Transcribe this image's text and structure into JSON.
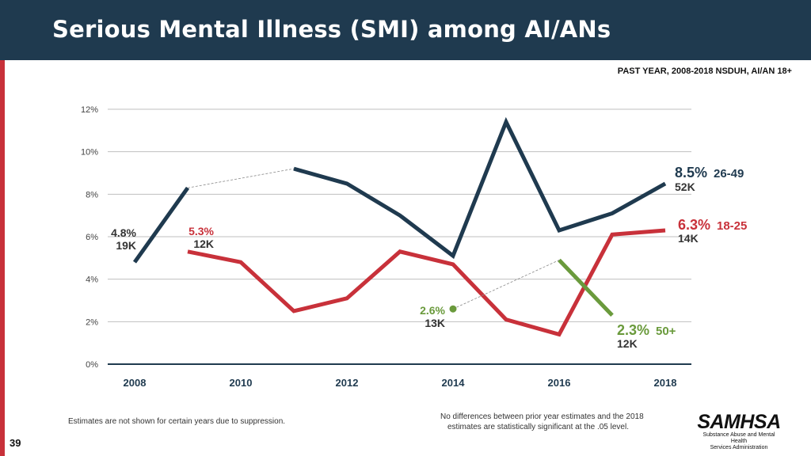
{
  "header": {
    "title": "Serious Mental Illness (SMI) among AI/ANs",
    "subtitle": "PAST YEAR, 2008-2018 NSDUH, AI/AN 18+"
  },
  "footer": {
    "suppression_note": "Estimates are not shown for certain years due to suppression.",
    "significance_note_line1": "No differences between prior year estimates and the 2018",
    "significance_note_line2": "estimates are statistically significant at the .05 level.",
    "page_number": "39",
    "logo_word": "SAMHSA",
    "logo_line1": "Substance Abuse and Mental Health",
    "logo_line2": "Services Administration"
  },
  "colors": {
    "header_bg": "#1f3a4f",
    "accent_red": "#c8313a",
    "series_26_49": "#1f3a4f",
    "series_18_25": "#c8313a",
    "series_50_plus": "#6a9a3c"
  },
  "chart_data": {
    "type": "line",
    "title": "Serious Mental Illness (SMI) among AI/ANs",
    "xlabel": "",
    "ylabel": "",
    "ylim": [
      0,
      12
    ],
    "yticks": [
      0,
      2,
      4,
      6,
      8,
      10,
      12
    ],
    "ytick_labels": [
      "0%",
      "2%",
      "4%",
      "6%",
      "8%",
      "10%",
      "12%"
    ],
    "x_tick_labels": [
      "2008",
      "2010",
      "2012",
      "2014",
      "2016",
      "2018"
    ],
    "x_tick_values": [
      2008,
      2010,
      2012,
      2014,
      2016,
      2018
    ],
    "grid": true,
    "series": [
      {
        "name": "26-49",
        "color": "#1f3a4f",
        "segments": [
          [
            [
              2008,
              4.8
            ],
            [
              2009,
              8.3
            ]
          ],
          [
            [
              2011,
              9.2
            ],
            [
              2012,
              8.5
            ],
            [
              2013,
              7.0
            ],
            [
              2014,
              5.1
            ],
            [
              2015,
              11.4
            ],
            [
              2016,
              6.3
            ],
            [
              2017,
              7.1
            ],
            [
              2018,
              8.5
            ]
          ]
        ],
        "suppression_gaps": [
          [
            [
              2009,
              8.3
            ],
            [
              2011,
              9.2
            ]
          ]
        ],
        "start_label": {
          "pct": "4.8%",
          "count": "19K"
        },
        "end_label": {
          "pct": "8.5%",
          "group": "26-49",
          "count": "52K"
        }
      },
      {
        "name": "18-25",
        "color": "#c8313a",
        "segments": [
          [
            [
              2009,
              5.3
            ],
            [
              2010,
              4.8
            ],
            [
              2011,
              2.5
            ],
            [
              2012,
              3.1
            ],
            [
              2013,
              5.3
            ],
            [
              2014,
              4.7
            ],
            [
              2015,
              2.1
            ],
            [
              2016,
              1.4
            ],
            [
              2017,
              6.1
            ],
            [
              2018,
              6.3
            ]
          ]
        ],
        "suppression_gaps": [],
        "start_label": {
          "pct": "5.3%",
          "count": "12K"
        },
        "end_label": {
          "pct": "6.3%",
          "group": "18-25",
          "count": "14K"
        }
      },
      {
        "name": "50+",
        "color": "#6a9a3c",
        "points": [
          [
            2014,
            2.6
          ]
        ],
        "segments": [
          [
            [
              2016,
              4.9
            ],
            [
              2017,
              2.3
            ]
          ]
        ],
        "suppression_gaps": [
          [
            [
              2014,
              2.6
            ],
            [
              2016,
              4.9
            ]
          ]
        ],
        "start_label": {
          "pct": "2.6%",
          "count": "13K"
        },
        "end_label": {
          "pct": "2.3%",
          "group": "50+",
          "count": "12K"
        }
      }
    ]
  }
}
